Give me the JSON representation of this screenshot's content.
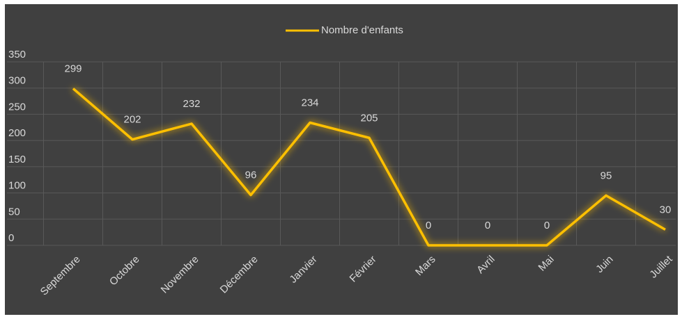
{
  "chart_data": {
    "type": "line",
    "categories": [
      "Septembre",
      "Octobre",
      "Novembre",
      "Décembre",
      "Janvier",
      "Février",
      "Mars",
      "Avril",
      "Mai",
      "Juin",
      "Juillet"
    ],
    "series": [
      {
        "name": "Nombre d'enfants",
        "color": "#ffc000",
        "values": [
          299,
          202,
          232,
          96,
          234,
          205,
          0,
          0,
          0,
          95,
          30
        ]
      }
    ],
    "ylim": [
      0,
      350
    ],
    "yticks": [
      0,
      50,
      100,
      150,
      200,
      250,
      300,
      350
    ],
    "grid": true,
    "legend": "top"
  }
}
